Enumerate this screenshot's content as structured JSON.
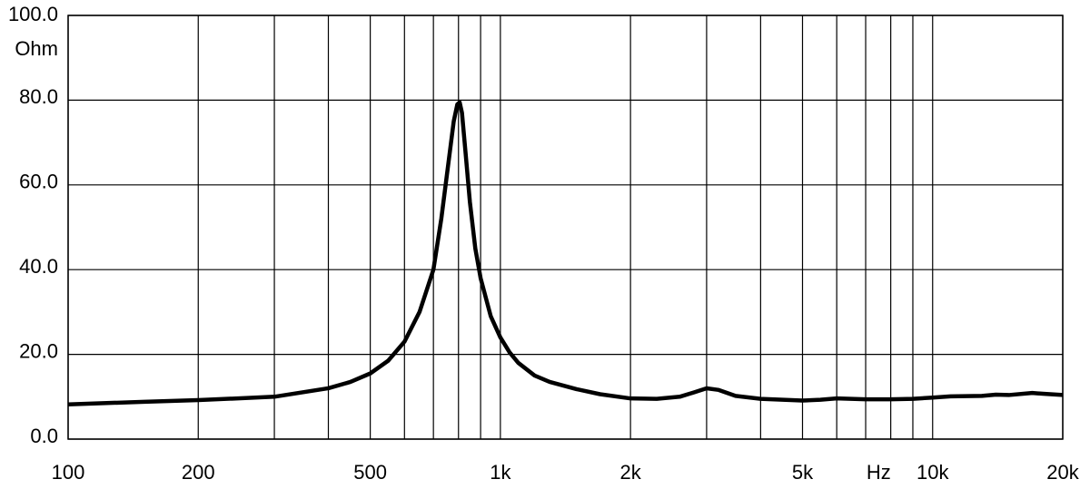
{
  "chart_data": {
    "type": "line",
    "xscale": "log",
    "grid": true,
    "color": "#000000",
    "y_unit": "Ohm",
    "x_unit": {
      "value": 7500,
      "label": "Hz"
    },
    "xlim": [
      100,
      20000
    ],
    "ylim": [
      0,
      100
    ],
    "xticks": [
      100,
      200,
      500,
      {
        "value": 1000,
        "label": "1k"
      },
      {
        "value": 2000,
        "label": "2k"
      },
      {
        "value": 5000,
        "label": "5k"
      },
      {
        "value": 10000,
        "label": "10k"
      },
      {
        "value": 20000,
        "label": "20k"
      }
    ],
    "x_minor_ticks": [
      300,
      400,
      600,
      700,
      800,
      900,
      3000,
      4000,
      6000,
      7000,
      8000,
      9000
    ],
    "yticks": [
      {
        "value": 0,
        "label": "0.0"
      },
      {
        "value": 20,
        "label": "20.0"
      },
      {
        "value": 40,
        "label": "40.0"
      },
      {
        "value": 60,
        "label": "60.0"
      },
      {
        "value": 80,
        "label": "80.0"
      },
      {
        "value": 100,
        "label": "100.0"
      }
    ],
    "x": [
      100,
      150,
      200,
      300,
      400,
      450,
      500,
      550,
      600,
      650,
      700,
      730,
      760,
      780,
      795,
      805,
      815,
      830,
      850,
      875,
      900,
      950,
      1000,
      1050,
      1100,
      1200,
      1300,
      1500,
      1700,
      2000,
      2300,
      2600,
      2800,
      3000,
      3200,
      3500,
      4000,
      5000,
      5500,
      6000,
      7000,
      8000,
      9000,
      10000,
      11000,
      13000,
      14000,
      15000,
      17000,
      18000,
      20000
    ],
    "values": [
      8.2,
      8.8,
      9.2,
      10,
      12,
      13.5,
      15.5,
      18.5,
      23,
      30,
      40,
      52,
      66,
      75,
      79,
      79.5,
      77,
      68,
      56,
      45,
      38,
      29,
      24,
      20.5,
      18,
      15,
      13.5,
      11.8,
      10.6,
      9.6,
      9.5,
      10,
      11,
      12,
      11.6,
      10.2,
      9.5,
      9.1,
      9.3,
      9.6,
      9.4,
      9.4,
      9.5,
      9.8,
      10.1,
      10.2,
      10.5,
      10.4,
      10.9,
      10.7,
      10.4
    ]
  }
}
